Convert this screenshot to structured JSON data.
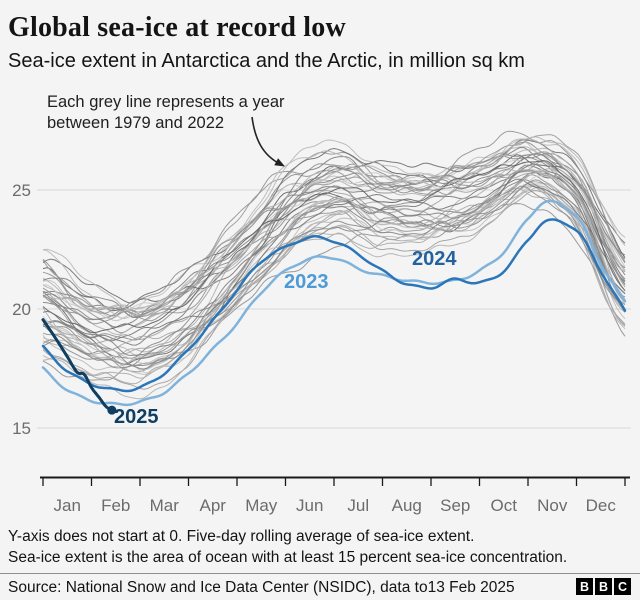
{
  "header": {
    "title": "Global sea-ice at record low",
    "subtitle": "Sea-ice extent in Antarctica and the Arctic, in million sq km"
  },
  "annotation": {
    "line1": "Each grey line represents a year",
    "line2": "between 1979 and 2022"
  },
  "chart_data": {
    "type": "line",
    "title": "Global sea-ice at record low",
    "ylabel": "Sea-ice extent, million sq km",
    "y_ticks": [
      25,
      20,
      15
    ],
    "ylim": [
      14.8,
      28
    ],
    "grid": "horizontal",
    "months": [
      "Jan",
      "Feb",
      "Mar",
      "Apr",
      "May",
      "Jun",
      "Jul",
      "Aug",
      "Sep",
      "Oct",
      "Nov",
      "Dec"
    ],
    "grey_lines": {
      "meaning": "Each grey line represents a year between 1979 and 2022",
      "count": 44,
      "x_months": [
        0,
        1,
        2,
        3,
        4,
        5,
        6,
        7,
        8,
        9,
        10,
        11,
        12
      ],
      "lower": [
        17.3,
        16.5,
        16.3,
        17.0,
        19.0,
        21.2,
        22.3,
        22.2,
        22.1,
        22.6,
        24.0,
        22.6,
        18.6
      ],
      "upper": [
        22.8,
        21.2,
        20.9,
        22.1,
        24.2,
        26.3,
        27.2,
        26.4,
        26.2,
        26.9,
        27.6,
        26.8,
        23.0
      ]
    },
    "series": [
      {
        "name": "2023",
        "color": "#7FB3DC",
        "label_color": "#4D9BD6",
        "x_months": [
          0,
          0.5,
          1,
          1.5,
          2,
          2.5,
          3,
          3.5,
          4,
          4.5,
          5,
          5.5,
          6,
          6.5,
          7,
          7.5,
          8,
          8.5,
          9,
          9.5,
          10,
          10.4,
          11,
          11.5,
          12
        ],
        "values": [
          17.5,
          16.6,
          16.15,
          16.0,
          16.1,
          16.5,
          17.3,
          18.3,
          19.4,
          20.7,
          21.6,
          22.1,
          22.15,
          21.7,
          21.4,
          21.2,
          21.1,
          21.2,
          21.6,
          22.4,
          23.8,
          24.5,
          23.9,
          21.9,
          20.3
        ]
      },
      {
        "name": "2024",
        "color": "#2B76B9",
        "label_color": "#23629E",
        "x_months": [
          0,
          0.5,
          1,
          1.5,
          2,
          2.5,
          3,
          3.5,
          4,
          4.5,
          5,
          5.5,
          6,
          6.5,
          7,
          7.5,
          8,
          8.5,
          9,
          9.5,
          10,
          10.4,
          11,
          11.5,
          12
        ],
        "values": [
          18.4,
          17.4,
          16.85,
          16.6,
          16.7,
          17.3,
          18.3,
          19.5,
          20.8,
          22.0,
          22.6,
          23.0,
          22.85,
          22.3,
          21.6,
          21.05,
          20.9,
          21.25,
          21.1,
          21.6,
          22.9,
          23.7,
          23.3,
          21.6,
          19.9
        ]
      },
      {
        "name": "2025",
        "color": "#0E3E62",
        "label_color": "#0E3E62",
        "end_dot": true,
        "x_months": [
          0,
          0.25,
          0.5,
          0.7,
          0.85,
          1.0,
          1.15,
          1.3,
          1.42
        ],
        "values": [
          19.55,
          18.8,
          18.0,
          17.35,
          17.25,
          16.7,
          16.3,
          15.9,
          15.75
        ]
      }
    ]
  },
  "footnotes": [
    "Y-axis does not start at 0. Five-day rolling average of sea-ice extent.",
    "Sea-ice extent is the area of ocean with at least 15 percent sea-ice concentration."
  ],
  "source": {
    "text": "Source: National Snow and Ice Data Center (NSIDC), data to13 Feb 2025",
    "logo": [
      "B",
      "B",
      "C"
    ]
  }
}
